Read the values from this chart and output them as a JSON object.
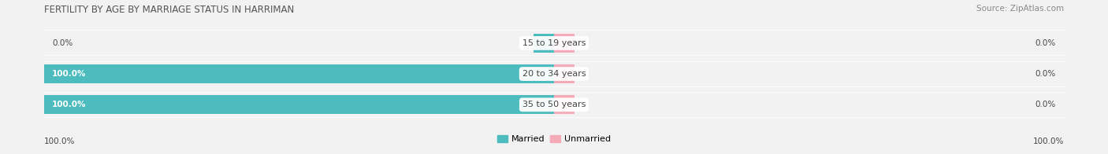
{
  "title": "FERTILITY BY AGE BY MARRIAGE STATUS IN HARRIMAN",
  "source": "Source: ZipAtlas.com",
  "categories": [
    "15 to 19 years",
    "20 to 34 years",
    "35 to 50 years"
  ],
  "married_values": [
    0.0,
    100.0,
    100.0
  ],
  "unmarried_values": [
    0.0,
    0.0,
    0.0
  ],
  "married_color": "#4cbcbe",
  "unmarried_color": "#f5aab8",
  "bar_bg_color": "#e8e8ec",
  "bg_color": "#f2f2f2",
  "title_color": "#555555",
  "source_color": "#888888",
  "label_color": "#444444",
  "title_fontsize": 8.5,
  "source_fontsize": 7.5,
  "bar_label_fontsize": 7.5,
  "cat_label_fontsize": 8,
  "legend_fontsize": 8,
  "tick_fontsize": 7.5,
  "x_left_label": "100.0%",
  "x_right_label": "100.0%",
  "bar_height": 0.72,
  "min_bar_width": 4.0,
  "hspace": 0.12
}
